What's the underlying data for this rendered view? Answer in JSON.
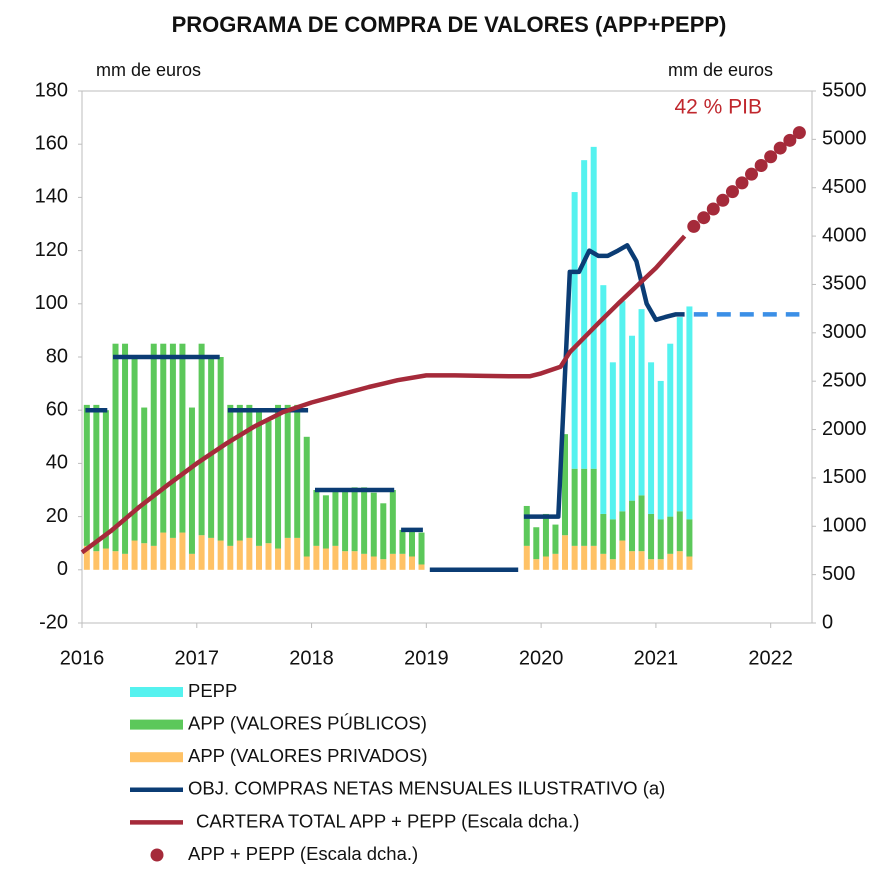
{
  "chart_data": {
    "type": "bar",
    "title": "PROGRAMA DE COMPRA DE VALORES (APP+PEPP)",
    "y_label": "mm de euros",
    "y2_label": "mm de euros",
    "annotation": "42 % PIB",
    "stacked": true,
    "x": [
      2016.042,
      2016.125,
      2016.208,
      2016.292,
      2016.375,
      2016.458,
      2016.542,
      2016.625,
      2016.708,
      2016.792,
      2016.875,
      2016.958,
      2017.042,
      2017.125,
      2017.208,
      2017.292,
      2017.375,
      2017.458,
      2017.542,
      2017.625,
      2017.708,
      2017.792,
      2017.875,
      2017.958,
      2018.042,
      2018.125,
      2018.208,
      2018.292,
      2018.375,
      2018.458,
      2018.542,
      2018.625,
      2018.708,
      2018.792,
      2018.875,
      2018.958,
      2019.042,
      2019.125,
      2019.208,
      2019.292,
      2019.375,
      2019.458,
      2019.542,
      2019.625,
      2019.708,
      2019.792,
      2019.875,
      2019.958,
      2020.042,
      2020.125,
      2020.208,
      2020.292,
      2020.375,
      2020.458,
      2020.542,
      2020.625,
      2020.708,
      2020.792,
      2020.875,
      2020.958,
      2021.042,
      2021.125,
      2021.208,
      2021.292
    ],
    "xlim": [
      2016,
      2022.36
    ],
    "xticks": [
      2016,
      2017,
      2018,
      2019,
      2020,
      2021,
      2022
    ],
    "ylim": [
      -20,
      180
    ],
    "yticks": [
      -20,
      0,
      20,
      40,
      60,
      80,
      100,
      120,
      140,
      160,
      180
    ],
    "y2lim": [
      0,
      5500
    ],
    "y2ticks": [
      0,
      500,
      1000,
      1500,
      2000,
      2500,
      3000,
      3500,
      4000,
      4500,
      5000,
      5500
    ],
    "series": [
      {
        "name": "PEPP",
        "type": "bar",
        "color": "#55f2ef",
        "values": [
          null,
          null,
          null,
          null,
          null,
          null,
          null,
          null,
          null,
          null,
          null,
          null,
          null,
          null,
          null,
          null,
          null,
          null,
          null,
          null,
          null,
          null,
          null,
          null,
          null,
          null,
          null,
          null,
          null,
          null,
          null,
          null,
          null,
          null,
          null,
          null,
          null,
          null,
          null,
          null,
          null,
          null,
          null,
          null,
          null,
          null,
          null,
          null,
          null,
          null,
          null,
          104,
          116,
          121,
          86,
          59,
          79,
          62,
          70,
          57,
          52,
          65,
          73,
          80
        ]
      },
      {
        "name": "APP (VALORES PÚBLICOS)",
        "type": "bar",
        "color": "#5cc85a",
        "values": [
          53,
          55,
          52,
          78,
          79,
          69,
          51,
          76,
          71,
          73,
          71,
          55,
          72,
          68,
          69,
          53,
          51,
          50,
          51,
          46,
          54,
          50,
          50,
          45,
          21,
          20,
          21,
          23,
          24,
          25,
          24,
          21,
          24,
          9,
          10,
          12,
          null,
          null,
          null,
          null,
          null,
          null,
          null,
          null,
          null,
          null,
          15,
          12,
          16,
          11,
          38,
          29,
          29,
          29,
          15,
          15,
          11,
          19,
          21,
          17,
          15,
          14,
          15,
          14
        ]
      },
      {
        "name": "APP (VALORES PRIVADOS)",
        "type": "bar",
        "color": "#ffc266",
        "values": [
          9,
          7,
          8,
          7,
          6,
          11,
          10,
          9,
          14,
          12,
          14,
          6,
          13,
          12,
          11,
          9,
          11,
          12,
          9,
          10,
          8,
          12,
          12,
          5,
          9,
          8,
          9,
          7,
          7,
          6,
          5,
          4,
          6,
          6,
          5,
          2,
          null,
          null,
          null,
          null,
          null,
          null,
          null,
          null,
          null,
          null,
          9,
          4,
          5,
          6,
          13,
          9,
          9,
          9,
          6,
          4,
          11,
          7,
          7,
          4,
          4,
          6,
          7,
          5
        ]
      },
      {
        "name": "OBJ. COMPRAS NETAS MENSUALES ILUSTRATIVO (a)",
        "type": "line",
        "color": "#0b3c74",
        "x": [
          2016.03,
          2016.22,
          2016.25,
          2016.27,
          2017.2,
          2017.23,
          2017.27,
          2017.97,
          2018.0,
          2018.03,
          2018.72,
          2018.75,
          2018.78,
          2018.97,
          2019.0,
          2019.03,
          2019.8,
          2019.83,
          2019.85,
          2020.15,
          2020.25,
          2020.33,
          2020.42,
          2020.5,
          2020.58,
          2020.67,
          2020.75,
          2020.83,
          2020.92,
          2021.0,
          2021.08,
          2021.17,
          2021.25
        ],
        "values": [
          60,
          60,
          null,
          80,
          80,
          null,
          60,
          60,
          null,
          30,
          30,
          null,
          15,
          15,
          null,
          0,
          0,
          null,
          20,
          20,
          112,
          112,
          120,
          118,
          118,
          120,
          122,
          116,
          100,
          94,
          95,
          96,
          96
        ]
      },
      {
        "type": "line",
        "dashed": true,
        "color": "#3b8fe6",
        "x": [
          2021.33,
          2022.25
        ],
        "values": [
          96,
          96
        ]
      },
      {
        "name": "CARTERA TOTAL APP + PEPP (Escala dcha.)",
        "type": "line",
        "axis": "y2",
        "color": "#a52a3a",
        "x": [
          2016.0,
          2016.25,
          2016.5,
          2016.75,
          2017.0,
          2017.25,
          2017.5,
          2017.75,
          2018.0,
          2018.25,
          2018.5,
          2018.75,
          2019.0,
          2019.25,
          2019.5,
          2019.75,
          2019.9,
          2020.0,
          2020.17,
          2020.25,
          2020.5,
          2020.67,
          2020.83,
          2021.0,
          2021.25
        ],
        "values": [
          730,
          950,
          1200,
          1430,
          1650,
          1850,
          2030,
          2180,
          2280,
          2360,
          2440,
          2510,
          2560,
          2560,
          2555,
          2550,
          2550,
          2580,
          2650,
          2800,
          3100,
          3300,
          3480,
          3670,
          4000
        ]
      },
      {
        "name": "APP + PEPP (Escala dcha.)",
        "type": "scatter",
        "axis": "y2",
        "color": "#a52a3a",
        "x": [
          2021.33,
          2021.417,
          2021.5,
          2021.583,
          2021.667,
          2021.75,
          2021.833,
          2021.917,
          2022.0,
          2022.083,
          2022.167,
          2022.25
        ],
        "values": [
          4100,
          4190,
          4280,
          4370,
          4460,
          4550,
          4640,
          4730,
          4820,
          4910,
          4990,
          5070
        ]
      }
    ]
  }
}
